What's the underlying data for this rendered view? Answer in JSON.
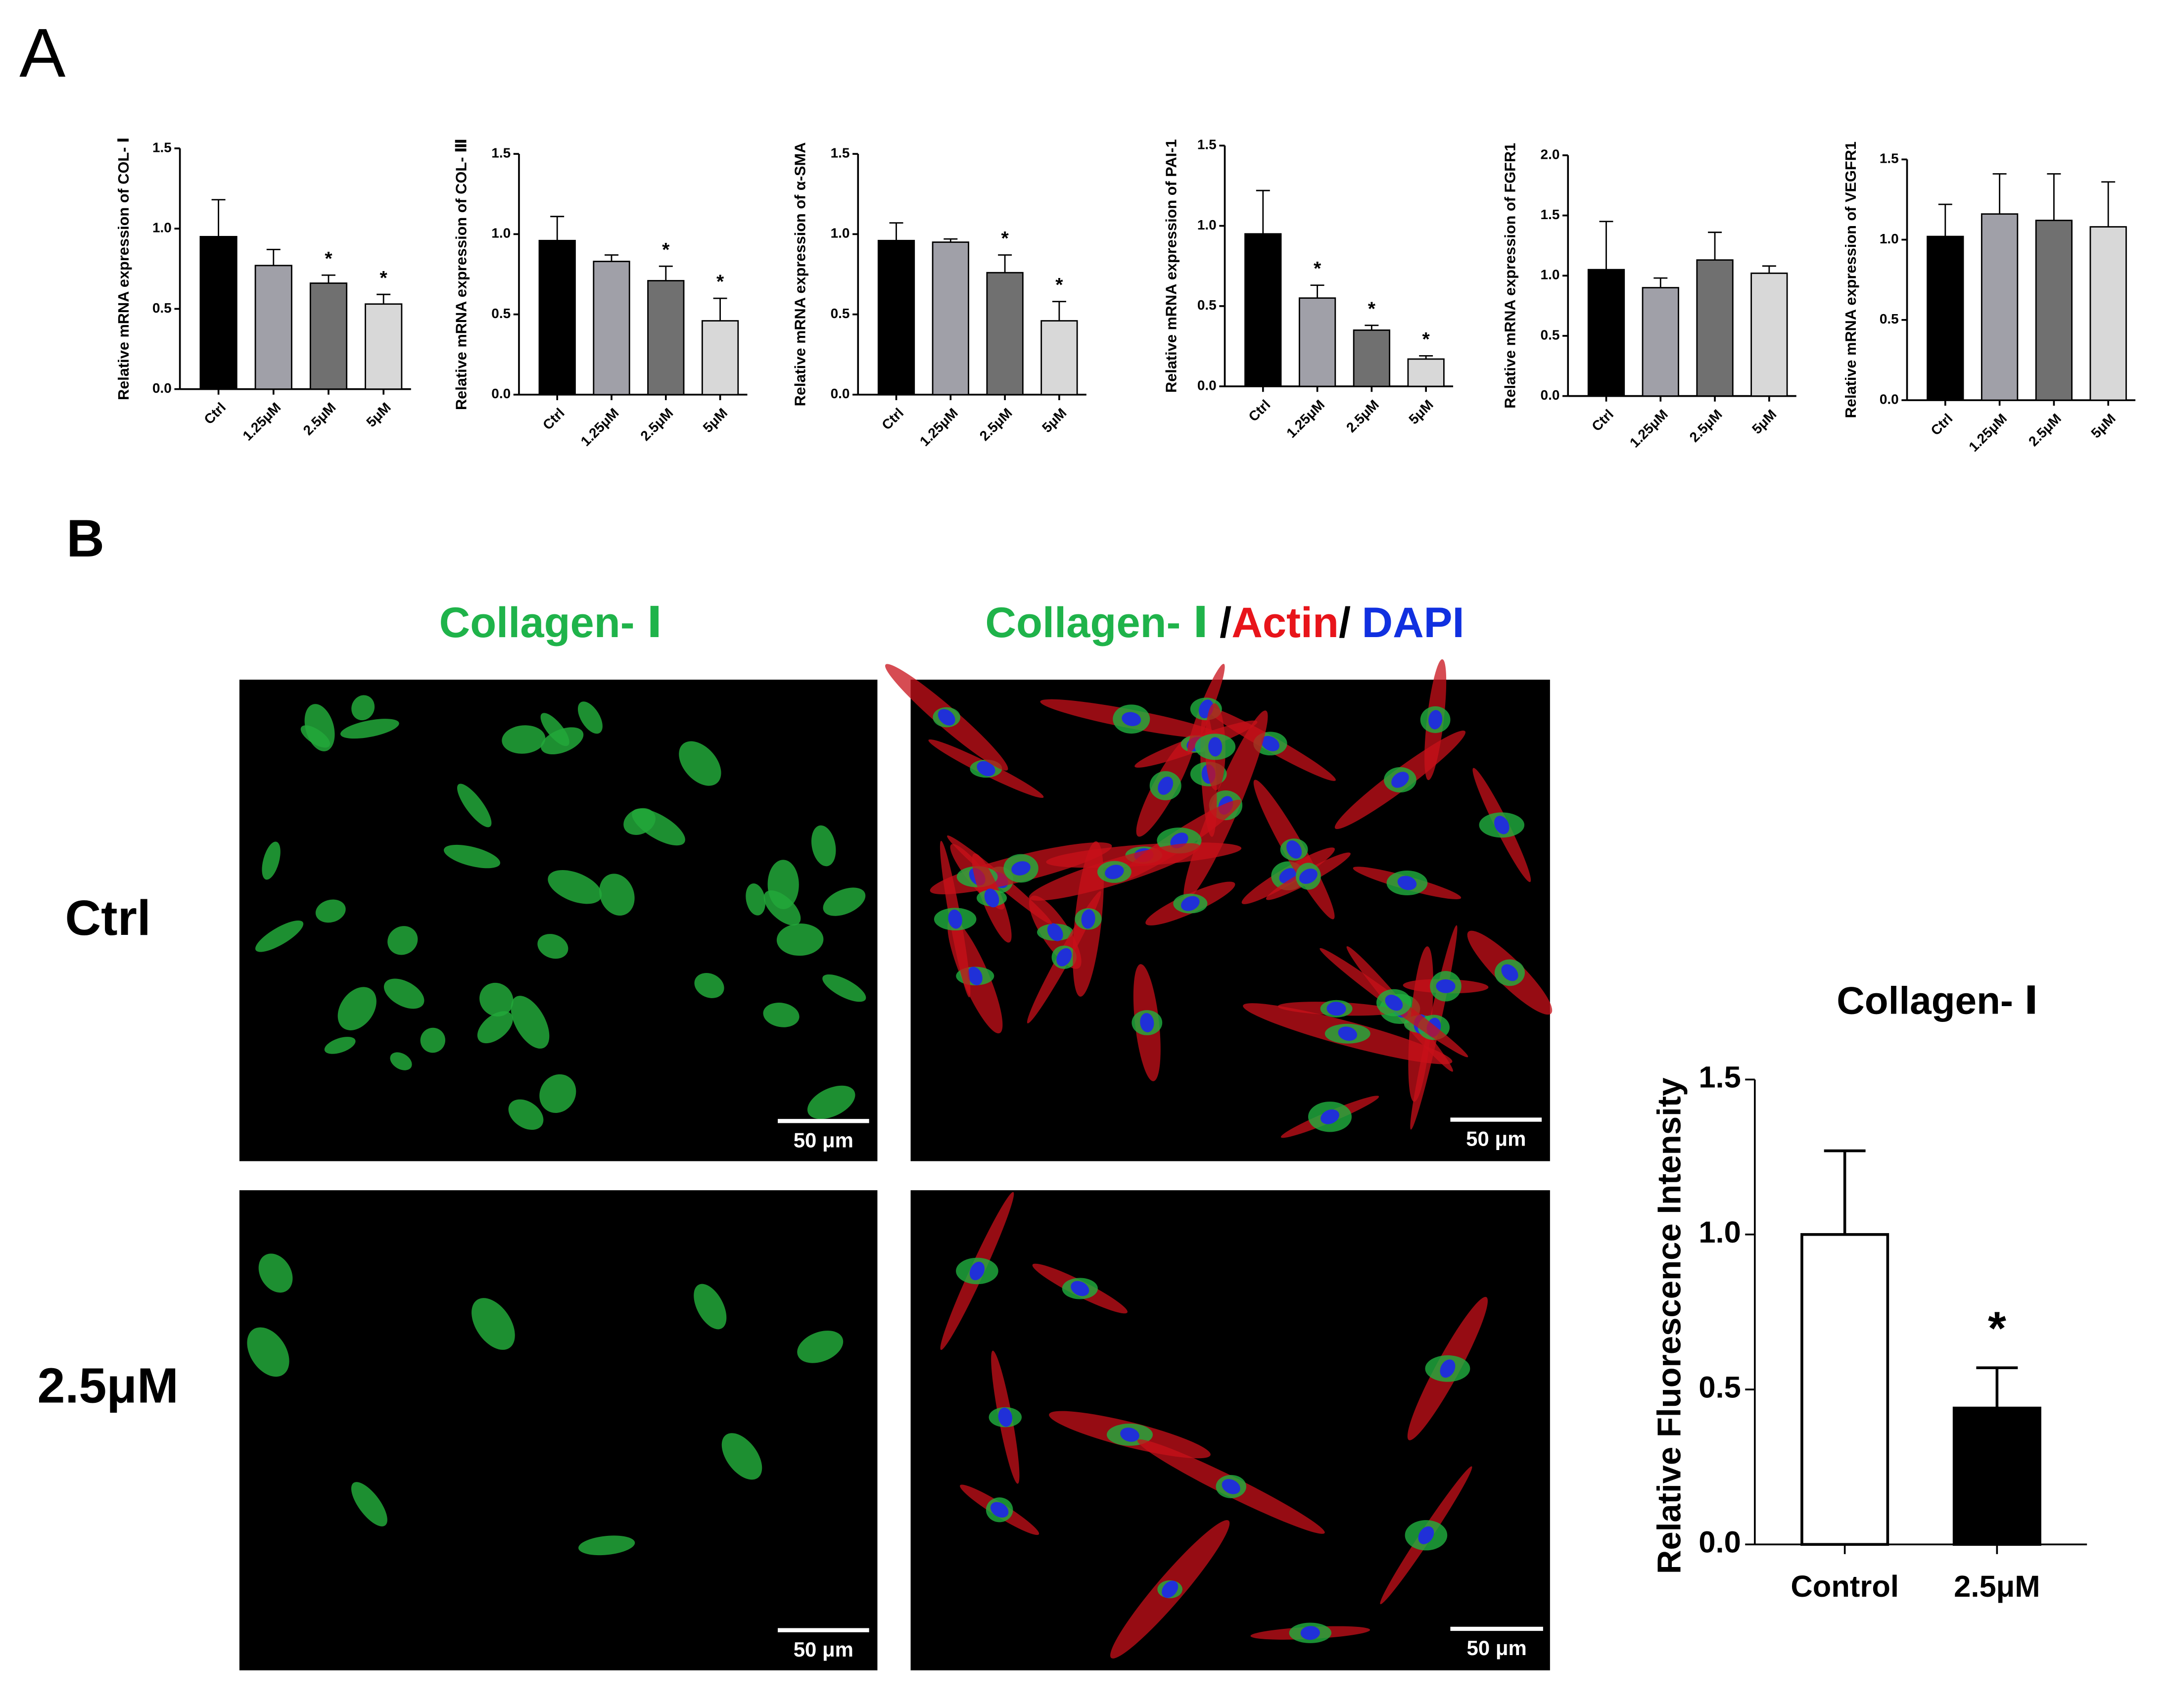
{
  "panel_labels": [
    "A",
    "B"
  ],
  "image_header_left": "Collagen- Ⅰ",
  "image_header_right": [
    "Collagen- Ⅰ",
    "/",
    "Actin",
    "/",
    "DAPI"
  ],
  "image_row_labels": [
    "Ctrl",
    "2.5μM"
  ],
  "scale_bars": [
    "50 μm",
    "50 μm",
    "50 μm",
    "50 μm"
  ],
  "chart_data": [
    {
      "type": "bar",
      "ylabel": "Relative mRNA expression of COL- Ⅰ",
      "categories": [
        "Ctrl",
        "1.25μM",
        "2.5μM",
        "5μM"
      ],
      "values": [
        0.95,
        0.77,
        0.66,
        0.53
      ],
      "errors": [
        0.23,
        0.1,
        0.05,
        0.06
      ],
      "significance": [
        null,
        null,
        "*",
        "*"
      ],
      "colors": [
        "#000000",
        "#a0a0a8",
        "#707070",
        "#d8d8d8"
      ],
      "ylim": [
        0,
        1.5
      ],
      "yticks": [
        {
          "value": 0,
          "label": "0.0"
        },
        0.5,
        {
          "value": 1,
          "label": "1.0"
        },
        1.5
      ]
    },
    {
      "type": "bar",
      "ylabel": "Relative mRNA expression of COL- Ⅲ",
      "categories": [
        "Ctrl",
        "1.25μM",
        "2.5μM",
        "5μM"
      ],
      "values": [
        0.96,
        0.83,
        0.71,
        0.46
      ],
      "errors": [
        0.15,
        0.04,
        0.09,
        0.14
      ],
      "significance": [
        null,
        null,
        "*",
        "*"
      ],
      "colors": [
        "#000000",
        "#a0a0a8",
        "#707070",
        "#d8d8d8"
      ],
      "ylim": [
        0,
        1.5
      ],
      "yticks": [
        {
          "value": 0,
          "label": "0.0"
        },
        0.5,
        {
          "value": 1,
          "label": "1.0"
        },
        1.5
      ]
    },
    {
      "type": "bar",
      "ylabel": "Relative mRNA expression of α-SMA",
      "categories": [
        "Ctrl",
        "1.25μM",
        "2.5μM",
        "5μM"
      ],
      "values": [
        0.96,
        0.95,
        0.76,
        0.46
      ],
      "errors": [
        0.11,
        0.02,
        0.11,
        0.12
      ],
      "significance": [
        null,
        null,
        "*",
        "*"
      ],
      "colors": [
        "#000000",
        "#a0a0a8",
        "#707070",
        "#d8d8d8"
      ],
      "ylim": [
        0,
        1.5
      ],
      "yticks": [
        {
          "value": 0,
          "label": "0.0"
        },
        0.5,
        {
          "value": 1,
          "label": "1.0"
        },
        1.5
      ]
    },
    {
      "type": "bar",
      "ylabel": "Relative mRNA expression of PAI-1",
      "categories": [
        "Ctrl",
        "1.25μM",
        "2.5μM",
        "5μM"
      ],
      "values": [
        0.95,
        0.55,
        0.35,
        0.17
      ],
      "errors": [
        0.27,
        0.08,
        0.03,
        0.02
      ],
      "significance": [
        null,
        "*",
        "*",
        "*"
      ],
      "colors": [
        "#000000",
        "#a0a0a8",
        "#707070",
        "#d8d8d8"
      ],
      "ylim": [
        0,
        1.5
      ],
      "yticks": [
        {
          "value": 0,
          "label": "0.0"
        },
        0.5,
        {
          "value": 1,
          "label": "1.0"
        },
        1.5
      ]
    },
    {
      "type": "bar",
      "ylabel": "Relative mRNA expression of FGFR1",
      "categories": [
        "Ctrl",
        "1.25μM",
        "2.5μM",
        "5μM"
      ],
      "values": [
        1.05,
        0.9,
        1.13,
        1.02
      ],
      "errors": [
        0.4,
        0.08,
        0.23,
        0.06
      ],
      "colors": [
        "#000000",
        "#a0a0a8",
        "#707070",
        "#d8d8d8"
      ],
      "ylim": [
        0,
        2
      ],
      "yticks": [
        {
          "value": 0,
          "label": "0.0"
        },
        0.5,
        {
          "value": 1,
          "label": "1.0"
        },
        1.5,
        {
          "value": 2,
          "label": "2.0"
        }
      ]
    },
    {
      "type": "bar",
      "ylabel": "Relative mRNA expression of VEGFR1",
      "categories": [
        "Ctrl",
        "1.25μM",
        "2.5μM",
        "5μM"
      ],
      "values": [
        1.02,
        1.16,
        1.12,
        1.08
      ],
      "errors": [
        0.2,
        0.25,
        0.29,
        0.28
      ],
      "colors": [
        "#000000",
        "#a0a0a8",
        "#707070",
        "#d8d8d8"
      ],
      "ylim": [
        0,
        1.5
      ],
      "yticks": [
        {
          "value": 0,
          "label": "0.0"
        },
        0.5,
        {
          "value": 1,
          "label": "1.0"
        },
        1.5
      ]
    },
    {
      "type": "bar",
      "title": "Collagen- Ⅰ",
      "ylabel": "Relative Fluorescence Intensity",
      "categories": [
        "Control",
        "2.5μM"
      ],
      "values": [
        1.0,
        0.44
      ],
      "errors": [
        0.27,
        0.13
      ],
      "significance": [
        null,
        "*"
      ],
      "colors": [
        "#ffffff",
        "#000000"
      ],
      "ylim": [
        0,
        1.5
      ],
      "yticks": [
        {
          "value": 0,
          "label": "0.0"
        },
        0.5,
        {
          "value": 1,
          "label": "1.0"
        },
        1.5
      ]
    }
  ]
}
